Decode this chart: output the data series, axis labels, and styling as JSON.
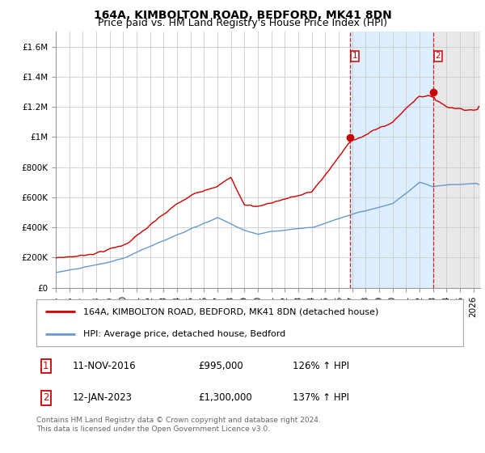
{
  "title": "164A, KIMBOLTON ROAD, BEDFORD, MK41 8DN",
  "subtitle": "Price paid vs. HM Land Registry's House Price Index (HPI)",
  "x_start": 1995.0,
  "x_end": 2026.5,
  "y_min": 0,
  "y_max": 1700000,
  "y_ticks": [
    0,
    200000,
    400000,
    600000,
    800000,
    1000000,
    1200000,
    1400000,
    1600000
  ],
  "y_tick_labels": [
    "£0",
    "£200K",
    "£400K",
    "£600K",
    "£800K",
    "£1M",
    "£1.2M",
    "£1.4M",
    "£1.6M"
  ],
  "x_ticks": [
    1995,
    1996,
    1997,
    1998,
    1999,
    2000,
    2001,
    2002,
    2003,
    2004,
    2005,
    2006,
    2007,
    2008,
    2009,
    2010,
    2011,
    2012,
    2013,
    2014,
    2015,
    2016,
    2017,
    2018,
    2019,
    2020,
    2021,
    2022,
    2023,
    2024,
    2025,
    2026
  ],
  "red_line_color": "#cc0000",
  "blue_line_color": "#6699cc",
  "dashed_line_color": "#cc0000",
  "background_color": "#ffffff",
  "plot_bg_color": "#ffffff",
  "shaded_region_color": "#ddeeff",
  "hatched_region_color": "#cccccc",
  "grid_color": "#cccccc",
  "marker1_x": 2016.87,
  "marker1_y": 995000,
  "marker2_x": 2023.04,
  "marker2_y": 1300000,
  "vline1_x": 2016.87,
  "vline2_x": 2023.04,
  "label1_date": "11-NOV-2016",
  "label1_price": "£995,000",
  "label1_hpi": "126% ↑ HPI",
  "label2_date": "12-JAN-2023",
  "label2_price": "£1,300,000",
  "label2_hpi": "137% ↑ HPI",
  "legend_line1": "164A, KIMBOLTON ROAD, BEDFORD, MK41 8DN (detached house)",
  "legend_line2": "HPI: Average price, detached house, Bedford",
  "footer": "Contains HM Land Registry data © Crown copyright and database right 2024.\nThis data is licensed under the Open Government Licence v3.0.",
  "title_fontsize": 10,
  "subtitle_fontsize": 9,
  "axis_fontsize": 7.5,
  "legend_fontsize": 8,
  "footer_fontsize": 6.5
}
